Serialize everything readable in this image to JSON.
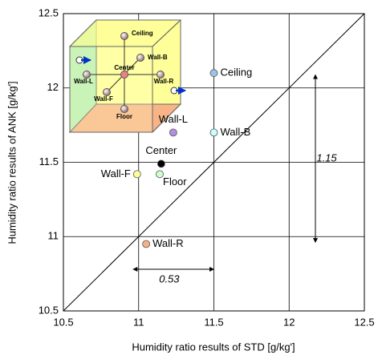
{
  "chart_data": {
    "type": "scatter",
    "x_label": "Humidity ratio results of STD [g/kg']",
    "y_label": "Humidity ratio results of ANK [g/kg']",
    "xlim": [
      10.5,
      12.5
    ],
    "ylim": [
      10.5,
      12.5
    ],
    "xticks": [
      10.5,
      11,
      11.5,
      12,
      12.5
    ],
    "yticks": [
      10.5,
      11,
      11.5,
      12,
      12.5
    ],
    "grid": true,
    "diagonal": true,
    "points": [
      {
        "label": "Ceiling",
        "x": 11.5,
        "y": 12.1,
        "color": "#9dc3e6"
      },
      {
        "label": "Wall-B",
        "x": 11.5,
        "y": 11.7,
        "color": "#ccffff"
      },
      {
        "label": "Wall-L",
        "x": 11.23,
        "y": 11.7,
        "color": "#b48ee6"
      },
      {
        "label": "Center",
        "x": 11.15,
        "y": 11.49,
        "color": "#000000"
      },
      {
        "label": "Wall-F",
        "x": 10.99,
        "y": 11.42,
        "color": "#ffff99"
      },
      {
        "label": "Floor",
        "x": 11.14,
        "y": 11.42,
        "color": "#ccffcc"
      },
      {
        "label": "Wall-R",
        "x": 11.05,
        "y": 10.95,
        "color": "#f4b183"
      }
    ],
    "annotations": [
      "1.15",
      "0.53"
    ],
    "inset_labels": [
      "Ceiling",
      "Wall-B",
      "Center",
      "Wall-L",
      "Wall-R",
      "Wall-F",
      "Floor"
    ]
  }
}
